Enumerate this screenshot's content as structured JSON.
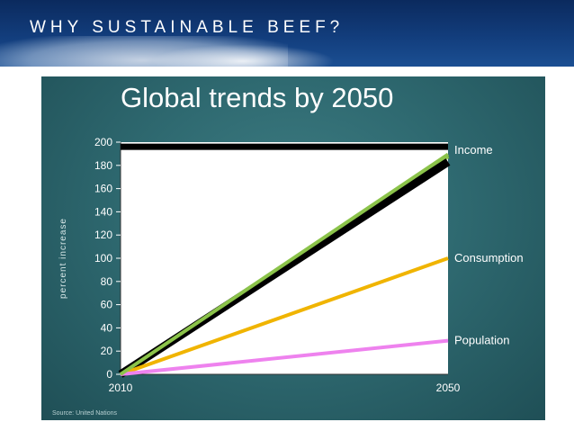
{
  "banner": {
    "title": "WHY SUSTAINABLE BEEF?"
  },
  "source_note": "Source: United Nations",
  "chart_data": {
    "type": "line",
    "title": "Global trends by 2050",
    "xlabel": "",
    "ylabel": "percent increase",
    "x": [
      2010,
      2050
    ],
    "x_ticks": [
      "2010",
      "2050"
    ],
    "ylim": [
      0,
      200
    ],
    "y_ticks": [
      0,
      20,
      40,
      60,
      80,
      100,
      120,
      140,
      160,
      180,
      200
    ],
    "grid": false,
    "series": [
      {
        "name": "Income",
        "values": [
          0,
          188
        ],
        "color": "#8bc34a"
      },
      {
        "name": "",
        "values": [
          0,
          183
        ],
        "color": "#000000"
      },
      {
        "name": "Consumption",
        "values": [
          0,
          100
        ],
        "color": "#f0b400"
      },
      {
        "name": "Population",
        "values": [
          0,
          29
        ],
        "color": "#ee82ee"
      }
    ],
    "reference_band": {
      "value": 196,
      "color": "#000000"
    }
  }
}
